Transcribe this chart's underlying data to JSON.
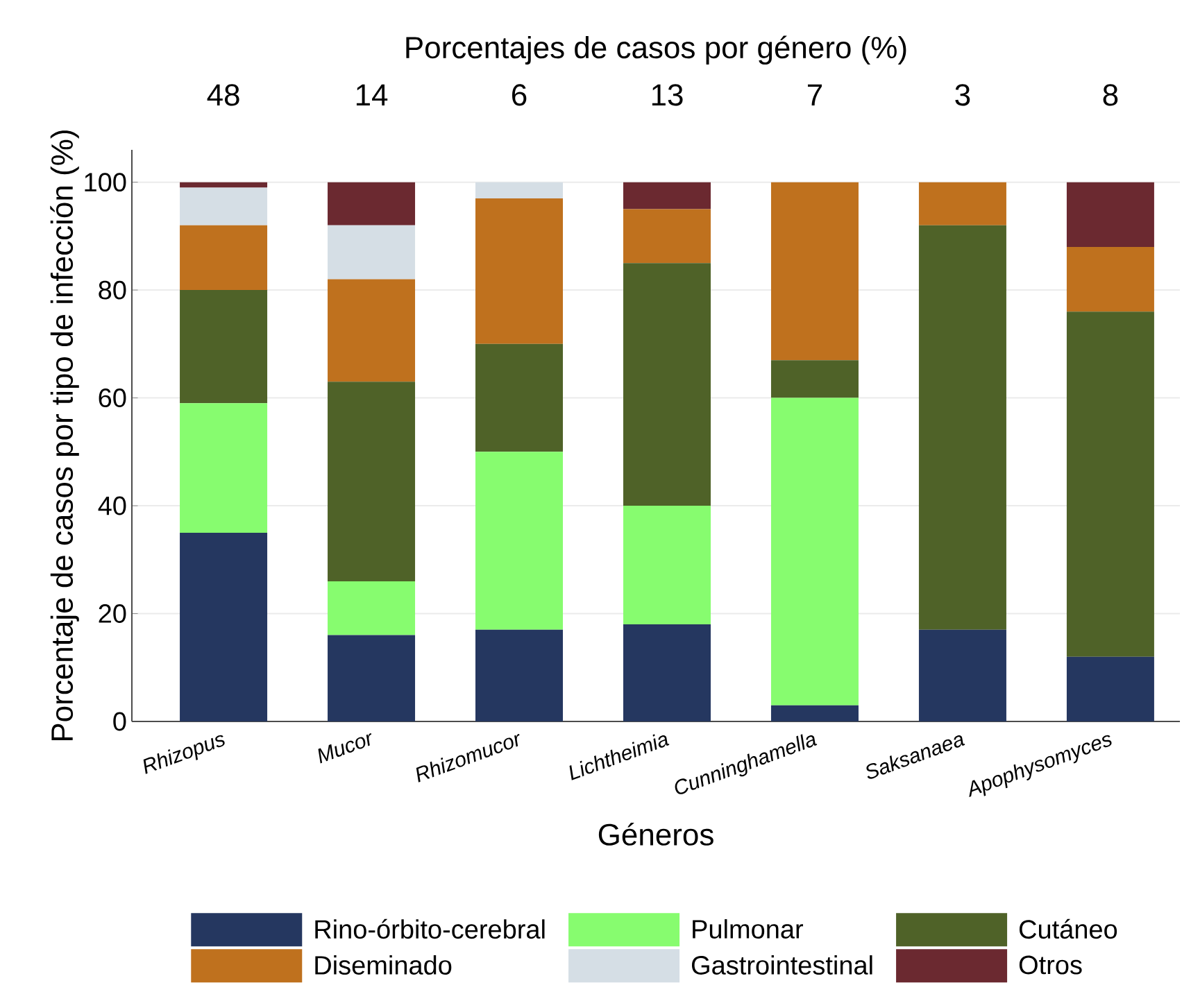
{
  "chart_data": {
    "type": "bar",
    "stacked": true,
    "title": "Porcentajes de casos por género (%)",
    "xlabel": "Géneros",
    "ylabel": "Porcentaje de casos por tipo de infección (%)",
    "categories": [
      "Rhizopus",
      "Mucor",
      "Rhizomucor",
      "Lichtheimia",
      "Cunninghamella",
      "Saksanaea",
      "Apophysomyces"
    ],
    "series": [
      {
        "name": "Rino-órbito-cerebral",
        "color": "#253760",
        "values": [
          35,
          16,
          17,
          18,
          3,
          17,
          12
        ]
      },
      {
        "name": "Pulmonar",
        "color": "#87fc6f",
        "values": [
          24,
          10,
          33,
          22,
          57,
          0,
          0
        ]
      },
      {
        "name": "Cutáneo",
        "color": "#4f6228",
        "values": [
          21,
          37,
          20,
          45,
          7,
          75,
          64
        ]
      },
      {
        "name": "Diseminado",
        "color": "#bf711e",
        "values": [
          12,
          19,
          27,
          10,
          33,
          8,
          12
        ]
      },
      {
        "name": "Gastrointestinal",
        "color": "#d5dee5",
        "values": [
          7,
          10,
          3,
          0,
          0,
          0,
          0
        ]
      },
      {
        "name": "Otros",
        "color": "#6b2930",
        "values": [
          1,
          8,
          0,
          5,
          0,
          0,
          12
        ]
      }
    ],
    "annotations": [
      "48",
      "14",
      "6",
      "13",
      "7",
      "3",
      "8"
    ],
    "ylim": [
      0,
      106
    ],
    "yticks": [
      0,
      20,
      40,
      60,
      80,
      100
    ],
    "grid": "y",
    "legend": "bottom"
  }
}
